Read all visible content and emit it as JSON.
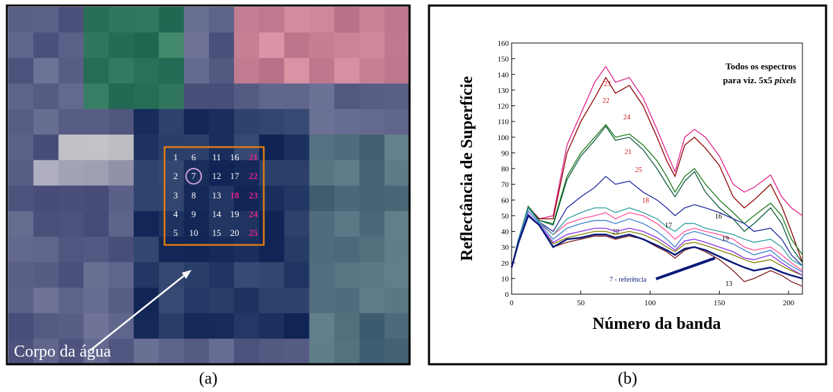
{
  "panel_a": {
    "grid_labels": [
      "1",
      "2",
      "3",
      "4",
      "5",
      "6",
      "7",
      "8",
      "9",
      "10",
      "11",
      "12",
      "13",
      "14",
      "15",
      "16",
      "17",
      "18",
      "19",
      "20",
      "21",
      "22",
      "23",
      "24",
      "25"
    ],
    "highlight": [
      17,
      20,
      21,
      22,
      23,
      24
    ],
    "highlight_color": "#e0218a",
    "circled": 6,
    "label": "Corpo da água",
    "caption": "(a)"
  },
  "chart_data": {
    "type": "line",
    "caption": "(b)",
    "xlabel": "Número da banda",
    "ylabel": "Reflectância de Superfície",
    "annotation": [
      "Todos os espectros",
      "para viz. 5x5"
    ],
    "annotation_italic": "pixels",
    "x": [
      0,
      5,
      12,
      20,
      30,
      40,
      50,
      60,
      68,
      75,
      85,
      95,
      105,
      112,
      118,
      125,
      132,
      140,
      150,
      160,
      168,
      175,
      187,
      195,
      202,
      210
    ],
    "xlim": [
      0,
      210
    ],
    "xticks": [
      0,
      50,
      100,
      150,
      200
    ],
    "ylim": [
      0,
      160
    ],
    "yticks": [
      0,
      10,
      20,
      30,
      40,
      50,
      60,
      70,
      80,
      90,
      100,
      110,
      120,
      130,
      140,
      150,
      160
    ],
    "series": [
      {
        "name": "23",
        "color": "#e0218a",
        "values": [
          17,
          35,
          56,
          48,
          50,
          95,
          115,
          135,
          145,
          135,
          138,
          125,
          105,
          90,
          78,
          100,
          105,
          100,
          88,
          70,
          65,
          68,
          76,
          62,
          55,
          50
        ]
      },
      {
        "name": "22",
        "color": "#8b0000",
        "values": [
          17,
          35,
          55,
          48,
          48,
          90,
          110,
          125,
          138,
          128,
          133,
          120,
          100,
          85,
          75,
          95,
          100,
          93,
          82,
          62,
          55,
          60,
          70,
          56,
          40,
          20
        ]
      },
      {
        "name": "24",
        "color": "#1a7a1a",
        "values": [
          17,
          35,
          56,
          47,
          45,
          75,
          90,
          100,
          108,
          100,
          102,
          95,
          85,
          75,
          65,
          75,
          80,
          70,
          60,
          52,
          45,
          50,
          58,
          50,
          35,
          25
        ]
      },
      {
        "name": "21",
        "color": "#0a5a3a",
        "values": [
          17,
          35,
          55,
          47,
          44,
          73,
          88,
          98,
          107,
          98,
          100,
          92,
          80,
          70,
          62,
          72,
          78,
          65,
          55,
          48,
          40,
          45,
          55,
          45,
          30,
          20
        ]
      },
      {
        "name": "25",
        "color": "#1f2a9f",
        "values": [
          17,
          35,
          55,
          46,
          40,
          55,
          62,
          68,
          75,
          70,
          72,
          65,
          60,
          55,
          50,
          55,
          57,
          55,
          52,
          48,
          45,
          40,
          42,
          35,
          25,
          18
        ]
      },
      {
        "name": "18",
        "color": "#ff4f9a",
        "values": [
          17,
          34,
          53,
          45,
          38,
          45,
          48,
          50,
          52,
          48,
          52,
          50,
          45,
          40,
          35,
          40,
          42,
          40,
          38,
          35,
          30,
          28,
          30,
          25,
          20,
          15
        ]
      },
      {
        "name": "16",
        "color": "#2a9fa0",
        "values": [
          17,
          35,
          55,
          46,
          38,
          48,
          52,
          55,
          55,
          52,
          55,
          52,
          48,
          43,
          40,
          45,
          45,
          42,
          40,
          38,
          35,
          33,
          35,
          30,
          22,
          18
        ]
      },
      {
        "name": "17",
        "color": "#3b7fd0",
        "values": [
          17,
          34,
          53,
          45,
          35,
          42,
          45,
          47,
          47,
          45,
          48,
          45,
          40,
          35,
          30,
          38,
          40,
          38,
          35,
          32,
          28,
          25,
          28,
          22,
          18,
          14
        ]
      },
      {
        "name": "20",
        "color": "#808000",
        "values": [
          17,
          33,
          50,
          44,
          32,
          36,
          38,
          40,
          40,
          38,
          40,
          38,
          34,
          30,
          27,
          32,
          33,
          31,
          28,
          25,
          22,
          20,
          22,
          18,
          15,
          12
        ]
      },
      {
        "name": "19",
        "color": "#8a2be2",
        "values": [
          17,
          33,
          51,
          44,
          33,
          38,
          40,
          42,
          42,
          40,
          42,
          40,
          36,
          32,
          28,
          34,
          35,
          33,
          30,
          27,
          23,
          22,
          25,
          20,
          16,
          12
        ]
      },
      {
        "name": "13",
        "color": "#7a1a1a",
        "values": [
          17,
          33,
          50,
          44,
          30,
          33,
          35,
          37,
          37,
          35,
          37,
          35,
          30,
          27,
          23,
          28,
          30,
          27,
          22,
          15,
          8,
          10,
          15,
          12,
          8,
          5
        ]
      },
      {
        "name": "7 - referência",
        "color": "#0b1a7a",
        "values": [
          17,
          33,
          50,
          44,
          30,
          35,
          36,
          38,
          38,
          36,
          38,
          35,
          31,
          28,
          25,
          29,
          30,
          28,
          24,
          20,
          17,
          15,
          17,
          14,
          12,
          10
        ]
      }
    ]
  }
}
